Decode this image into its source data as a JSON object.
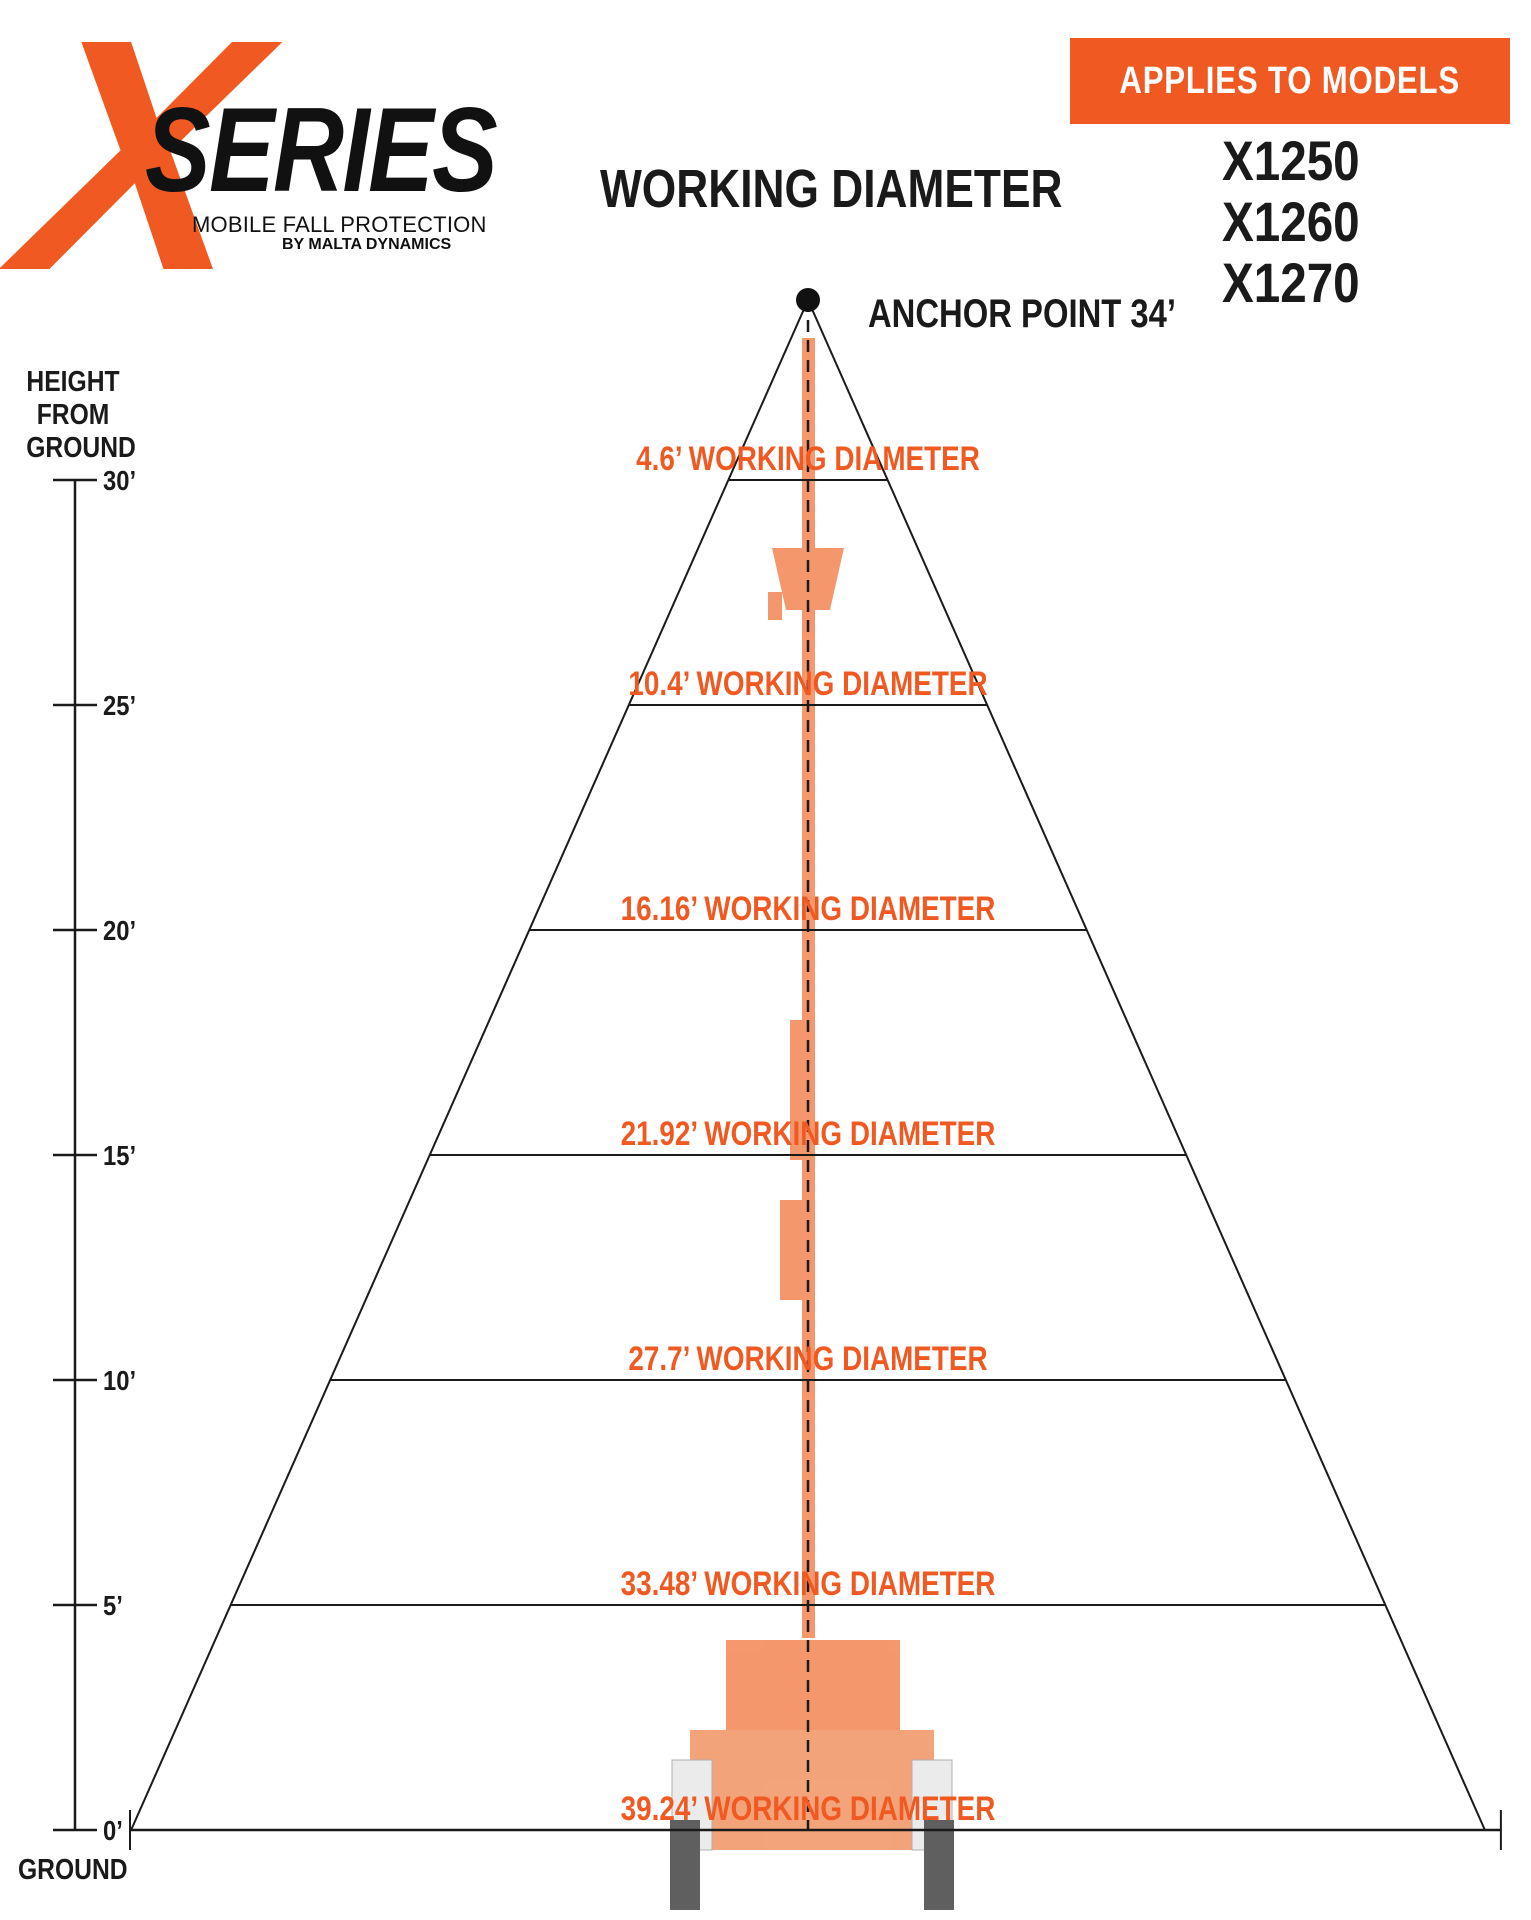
{
  "logo": {
    "mark": "X",
    "name": "SERIES",
    "tagline": "MOBILE FALL PROTECTION",
    "byline": "BY MALTA DYNAMICS"
  },
  "title": "WORKING DIAMETER",
  "models_badge": "APPLIES TO MODELS",
  "models": [
    "X1250",
    "X1260",
    "X1270"
  ],
  "anchor": {
    "label": "ANCHOR POINT 34’",
    "height_ft": 34
  },
  "axis": {
    "title": "HEIGHT FROM GROUND",
    "ground_label": "GROUND",
    "ticks": [
      {
        "height_ft": 0,
        "label": "0’"
      },
      {
        "height_ft": 5,
        "label": "5’"
      },
      {
        "height_ft": 10,
        "label": "10’"
      },
      {
        "height_ft": 15,
        "label": "15’"
      },
      {
        "height_ft": 20,
        "label": "20’"
      },
      {
        "height_ft": 25,
        "label": "25’"
      },
      {
        "height_ft": 30,
        "label": "30’"
      }
    ]
  },
  "diameters": [
    {
      "height_ft": 30,
      "diameter_ft": 4.6,
      "label": "4.6’ WORKING DIAMETER"
    },
    {
      "height_ft": 25,
      "diameter_ft": 10.4,
      "label": "10.4’ WORKING DIAMETER"
    },
    {
      "height_ft": 20,
      "diameter_ft": 16.16,
      "label": "16.16’ WORKING DIAMETER"
    },
    {
      "height_ft": 15,
      "diameter_ft": 21.92,
      "label": "21.92’ WORKING DIAMETER"
    },
    {
      "height_ft": 10,
      "diameter_ft": 27.7,
      "label": "27.7’ WORKING DIAMETER"
    },
    {
      "height_ft": 5,
      "diameter_ft": 33.48,
      "label": "33.48’ WORKING DIAMETER"
    },
    {
      "height_ft": 0,
      "diameter_ft": 39.24,
      "label": "39.24’ WORKING DIAMETER"
    }
  ],
  "colors": {
    "accent": "#f05a22",
    "text": "#1a1a1a",
    "mast": "#f37b45"
  }
}
